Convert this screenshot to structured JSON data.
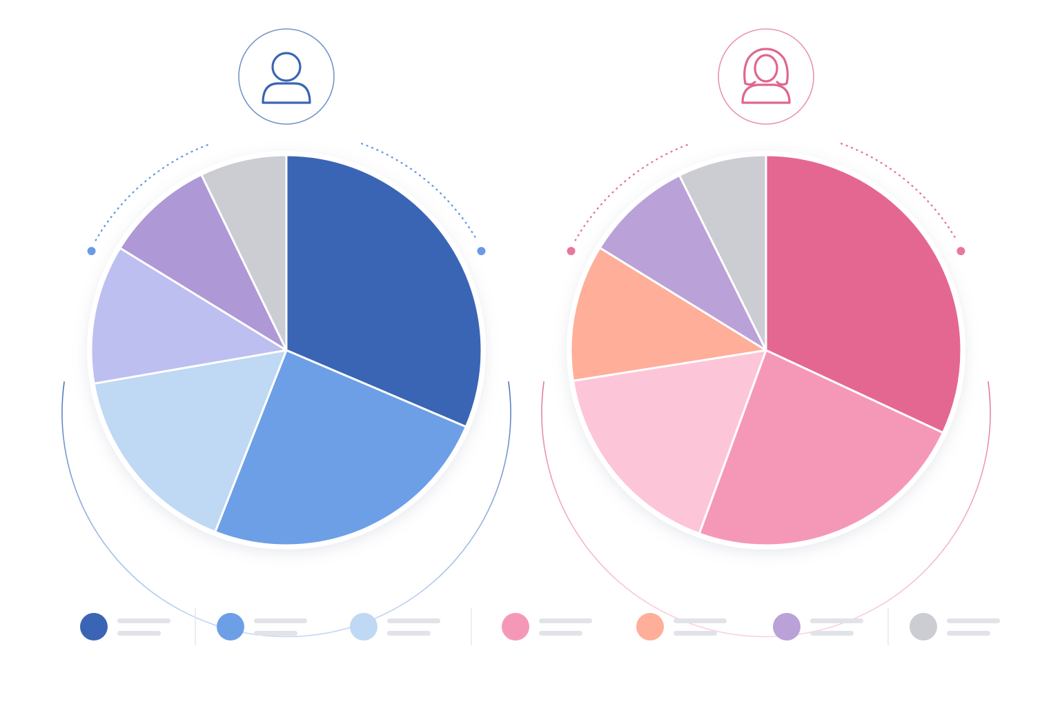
{
  "chart_data": [
    {
      "type": "pie",
      "title": "",
      "icon": "male-user-icon",
      "accent": "#3a65b4",
      "dot_color": "#6a9ae6",
      "slices": [
        {
          "value": 33.3,
          "color": "#3a65b4"
        },
        {
          "value": 26.0,
          "color": "#6d9fe6"
        },
        {
          "value": 17.3,
          "color": "#bfd8f3"
        },
        {
          "value": 12.2,
          "color": "#bdbff1"
        },
        {
          "value": 9.6,
          "color": "#ae98d6"
        },
        {
          "value": 7.6,
          "color": "#cbcdd3"
        }
      ]
    },
    {
      "type": "pie",
      "title": "",
      "icon": "female-user-icon",
      "accent": "#e06590",
      "dot_color": "#e8779c",
      "slices": [
        {
          "value": 34.5,
          "color": "#e46792"
        },
        {
          "value": 25.5,
          "color": "#f598b7"
        },
        {
          "value": 18.3,
          "color": "#fdc6d8"
        },
        {
          "value": 12.2,
          "color": "#ffae9a"
        },
        {
          "value": 9.6,
          "color": "#baa2d8"
        },
        {
          "value": 7.9,
          "color": "#cbcdd3"
        }
      ]
    }
  ],
  "legend": [
    {
      "color": "#3a65b4"
    },
    {
      "color": "#6d9fe6"
    },
    {
      "color": "#bfd8f3"
    },
    {
      "color": "#f598b7"
    },
    {
      "color": "#ffae9a"
    },
    {
      "color": "#baa2d8"
    },
    {
      "color": "#cbcdd3"
    }
  ]
}
